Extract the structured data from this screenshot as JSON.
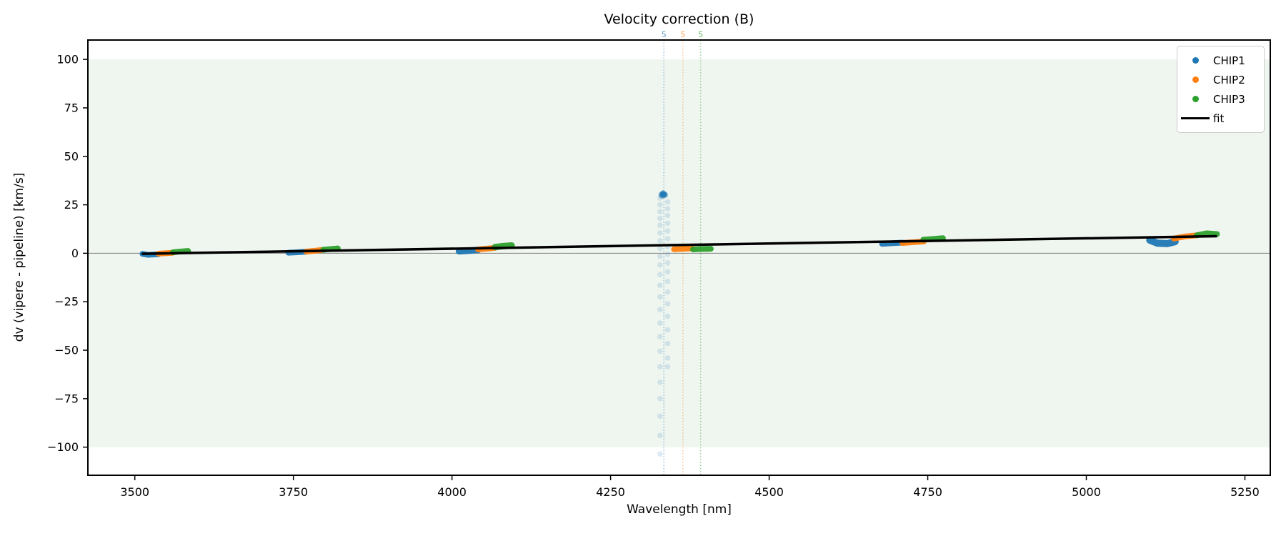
{
  "chart_data": {
    "type": "scatter",
    "title": "Velocity correction (B)",
    "xlabel": "Wavelength [nm]",
    "ylabel": "dv (vipere - pipeline) [km/s]",
    "xlim": [
      3426,
      5290
    ],
    "ylim": [
      -114.5,
      110
    ],
    "xticks": [
      3500,
      3750,
      4000,
      4250,
      4500,
      4750,
      5000,
      5250
    ],
    "yticks": [
      -100,
      -75,
      -50,
      -25,
      0,
      25,
      50,
      75,
      100
    ],
    "ytick_labels": [
      "−100",
      "−75",
      "−50",
      "−25",
      "0",
      "25",
      "50",
      "75",
      "100"
    ],
    "grid": false,
    "band": {
      "vmin": -100,
      "vmax": 100,
      "color": "#eff5ef"
    },
    "zero_line": {
      "v": 0,
      "color": "#808080"
    },
    "vlines": [
      {
        "x": 4334,
        "label": "5",
        "color": "#1f77b4"
      },
      {
        "x": 4364,
        "label": "5",
        "color": "#ff7f0e"
      },
      {
        "x": 4392,
        "label": "5",
        "color": "#2ca02c"
      }
    ],
    "fit": {
      "label": "fit",
      "color": "#000000",
      "points": [
        [
          3511,
          -0.25
        ],
        [
          5206,
          8.8
        ]
      ]
    },
    "legend": {
      "position": "upper right",
      "entries": [
        "CHIP1",
        "CHIP2",
        "CHIP3",
        "fit"
      ]
    },
    "series": [
      {
        "name": "CHIP1",
        "color": "#1f77b4",
        "segments": [
          {
            "pts": [
              [
                3512,
                -0.3
              ],
              [
                3521,
                -0.8
              ],
              [
                3537,
                -0.5
              ]
            ],
            "w": 8
          },
          {
            "pts": [
              [
                3742,
                0.3
              ],
              [
                3756,
                0.5
              ],
              [
                3770,
                0.8
              ]
            ],
            "w": 8
          },
          {
            "pts": [
              [
                4011,
                1.0
              ],
              [
                4026,
                1.3
              ],
              [
                4041,
                1.7
              ]
            ],
            "w": 9
          },
          {
            "pts": [
              [
                4678,
                4.9
              ],
              [
                4695,
                5.2
              ],
              [
                4710,
                5.5
              ]
            ],
            "w": 8
          },
          {
            "pts": [
              [
                5100,
                6.8
              ],
              [
                5112,
                5.2
              ],
              [
                5128,
                5.0
              ],
              [
                5140,
                6.0
              ]
            ],
            "w": 10
          }
        ]
      },
      {
        "name": "CHIP2",
        "color": "#ff7f0e",
        "segments": [
          {
            "pts": [
              [
                3537,
                -0.2
              ],
              [
                3548,
                0.0
              ],
              [
                3560,
                0.3
              ]
            ],
            "w": 8
          },
          {
            "pts": [
              [
                3770,
                0.9
              ],
              [
                3784,
                1.3
              ],
              [
                3797,
                1.8
              ]
            ],
            "w": 8
          },
          {
            "pts": [
              [
                4041,
                2.0
              ],
              [
                4055,
                2.4
              ],
              [
                4068,
                2.8
              ]
            ],
            "w": 8
          },
          {
            "pts": [
              [
                4350,
                2.1
              ],
              [
                4364,
                2.3
              ],
              [
                4378,
                2.5
              ]
            ],
            "w": 8
          },
          {
            "pts": [
              [
                4710,
                5.3
              ],
              [
                4727,
                5.7
              ],
              [
                4744,
                6.1
              ]
            ],
            "w": 8
          },
          {
            "pts": [
              [
                5138,
                7.6
              ],
              [
                5156,
                8.7
              ],
              [
                5176,
                9.3
              ]
            ],
            "w": 8
          }
        ]
      },
      {
        "name": "CHIP3",
        "color": "#2ca02c",
        "segments": [
          {
            "pts": [
              [
                3560,
                0.5
              ],
              [
                3572,
                0.9
              ],
              [
                3584,
                1.2
              ]
            ],
            "w": 8
          },
          {
            "pts": [
              [
                3797,
                1.8
              ],
              [
                3809,
                2.2
              ],
              [
                3820,
                2.5
              ]
            ],
            "w": 8
          },
          {
            "pts": [
              [
                4068,
                3.2
              ],
              [
                4081,
                3.7
              ],
              [
                4094,
                4.0
              ]
            ],
            "w": 9
          },
          {
            "pts": [
              [
                4380,
                2.0
              ],
              [
                4394,
                2.2
              ],
              [
                4408,
                2.3
              ]
            ],
            "w": 8
          },
          {
            "pts": [
              [
                4743,
                7.0
              ],
              [
                4759,
                7.4
              ],
              [
                4774,
                7.8
              ]
            ],
            "w": 8
          },
          {
            "pts": [
              [
                5174,
                9.3
              ],
              [
                5190,
                10.3
              ],
              [
                5206,
                9.9
              ]
            ],
            "w": 8
          }
        ]
      }
    ],
    "outliers": {
      "series": "CHIP1",
      "color": "#1f77b4",
      "fan_opacity": 0.15,
      "blob_opacity": 0.5,
      "blob": [
        [
          4330,
          30.3
        ],
        [
          4332.5,
          31.0
        ],
        [
          4335,
          30.5
        ],
        [
          4331,
          29.6
        ],
        [
          4334,
          29.9
        ],
        [
          4333,
          30.7
        ],
        [
          4336,
          30.1
        ],
        [
          4332,
          30.4
        ]
      ],
      "fan": [
        [
          4328,
          28.5
        ],
        [
          4328,
          25.0
        ],
        [
          4328,
          21.5
        ],
        [
          4328,
          18.0
        ],
        [
          4328,
          14.5
        ],
        [
          4328,
          10.5
        ],
        [
          4328,
          6.5
        ],
        [
          4328,
          2.5
        ],
        [
          4328,
          -1.5
        ],
        [
          4328,
          -6.0
        ],
        [
          4328,
          -11.0
        ],
        [
          4328,
          -16.5
        ],
        [
          4328,
          -22.5
        ],
        [
          4328,
          -29.0
        ],
        [
          4328,
          -36.0
        ],
        [
          4328,
          -43.0
        ],
        [
          4328,
          -50.5
        ],
        [
          4328,
          -58.5
        ],
        [
          4328,
          -66.5
        ],
        [
          4328,
          -75.0
        ],
        [
          4328,
          -84.0
        ],
        [
          4328,
          -94.0
        ],
        [
          4328,
          -103.5
        ],
        [
          4340,
          26.5
        ],
        [
          4340,
          23.0
        ],
        [
          4340,
          19.5
        ],
        [
          4340,
          15.5
        ],
        [
          4340,
          11.5
        ],
        [
          4340,
          7.5
        ],
        [
          4340,
          3.5
        ],
        [
          4340,
          -0.5
        ],
        [
          4340,
          -5.0
        ],
        [
          4340,
          -9.5
        ],
        [
          4340,
          -14.5
        ],
        [
          4340,
          -20.0
        ],
        [
          4340,
          -26.0
        ],
        [
          4340,
          -32.5
        ],
        [
          4340,
          -39.5
        ],
        [
          4340,
          -46.5
        ],
        [
          4340,
          -54.0
        ],
        [
          4340,
          -58.5
        ]
      ]
    }
  }
}
